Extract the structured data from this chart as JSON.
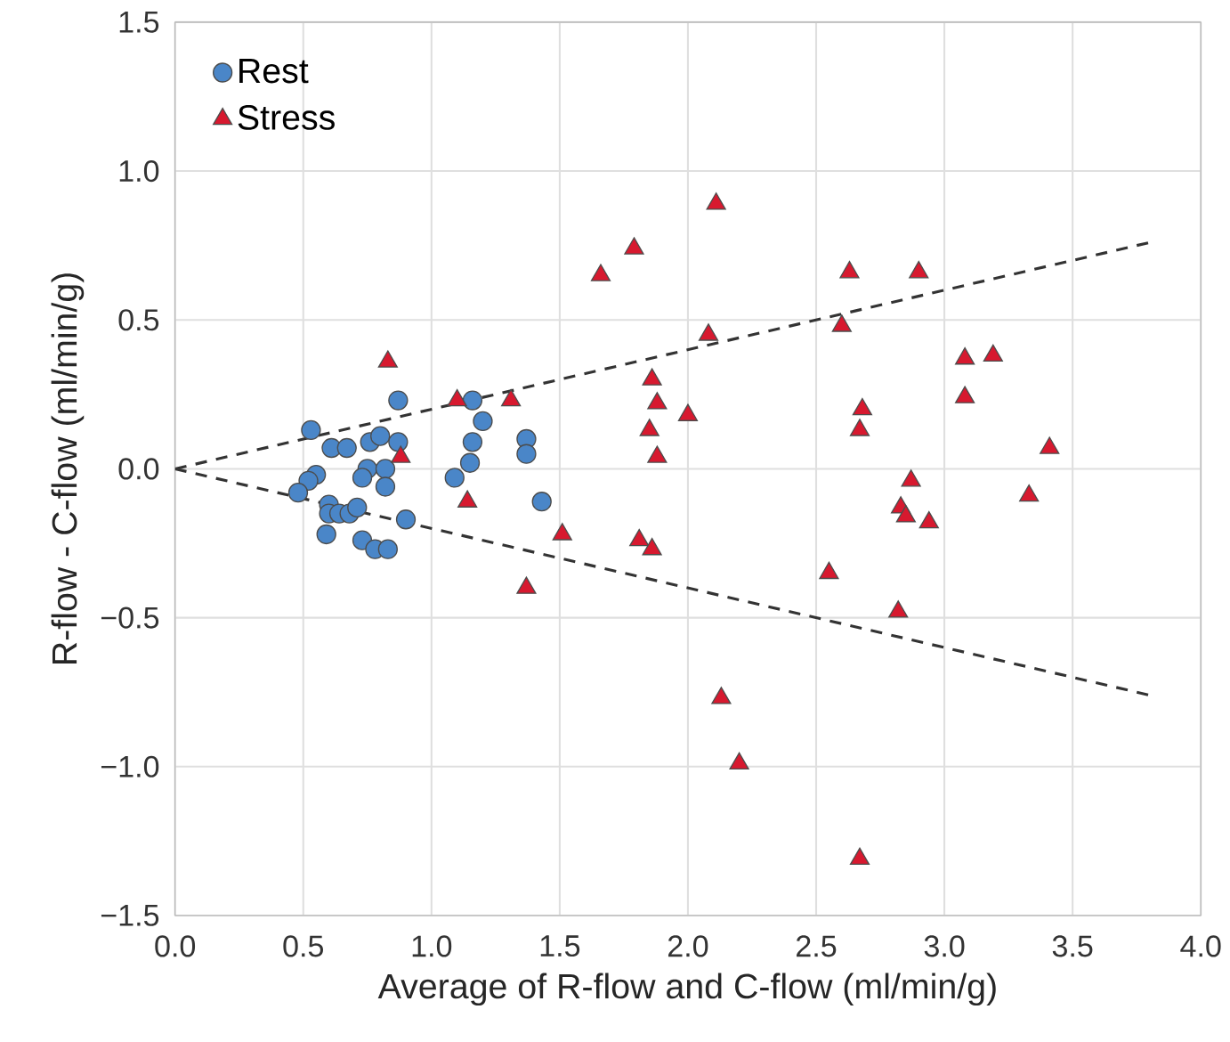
{
  "chart_data": {
    "type": "scatter",
    "xlabel": "Average of R-flow and C-flow (ml/min/g)",
    "ylabel": "R-flow - C-flow (ml/min/g)",
    "xlim": [
      0,
      4
    ],
    "ylim": [
      -1.5,
      1.5
    ],
    "xticks": [
      {
        "value": 0,
        "label": "0.0"
      },
      {
        "value": 0.5,
        "label": "0.5"
      },
      {
        "value": 1,
        "label": "1.0"
      },
      {
        "value": 1.5,
        "label": "1.5"
      },
      {
        "value": 2,
        "label": "2.0"
      },
      {
        "value": 2.5,
        "label": "2.5"
      },
      {
        "value": 3,
        "label": "3.0"
      },
      {
        "value": 3.5,
        "label": "3.5"
      },
      {
        "value": 4,
        "label": "4.0"
      }
    ],
    "yticks": [
      {
        "value": -1.5,
        "label": "−1.5"
      },
      {
        "value": -1,
        "label": "−1.0"
      },
      {
        "value": -0.5,
        "label": "−0.5"
      },
      {
        "value": 0,
        "label": "0.0"
      },
      {
        "value": 0.5,
        "label": "0.5"
      },
      {
        "value": 1,
        "label": "1.0"
      },
      {
        "value": 1.5,
        "label": "1.5"
      }
    ],
    "grid": true,
    "legend": "top left",
    "series": [
      {
        "name": "Rest",
        "color": "#4a86c8",
        "marker": "circle",
        "x": [
          0.53,
          0.61,
          0.67,
          0.76,
          0.8,
          0.87,
          0.87,
          0.75,
          0.82,
          0.73,
          0.82,
          0.55,
          0.52,
          0.48,
          0.6,
          0.6,
          0.64,
          0.68,
          0.71,
          0.9,
          0.59,
          0.73,
          0.78,
          0.83,
          1.16,
          1.2,
          1.16,
          1.15,
          1.09,
          1.37,
          1.37,
          1.43
        ],
        "values": [
          0.13,
          0.07,
          0.07,
          0.09,
          0.11,
          0.23,
          0.09,
          0.0,
          0.0,
          -0.03,
          -0.06,
          -0.02,
          -0.04,
          -0.08,
          -0.12,
          -0.15,
          -0.15,
          -0.15,
          -0.13,
          -0.17,
          -0.22,
          -0.24,
          -0.27,
          -0.27,
          0.23,
          0.16,
          0.09,
          0.02,
          -0.03,
          0.1,
          0.05,
          -0.11
        ]
      },
      {
        "name": "Stress",
        "color": "#d7192f",
        "marker": "triangle",
        "x": [
          0.83,
          1.1,
          1.31,
          0.88,
          1.14,
          1.51,
          1.37,
          2.11,
          1.79,
          1.66,
          2.63,
          2.08,
          2.6,
          1.86,
          1.88,
          1.85,
          1.88,
          2.0,
          2.68,
          2.67,
          1.81,
          1.86,
          2.55,
          2.13,
          2.2,
          2.67,
          2.9,
          3.08,
          3.19,
          3.08,
          3.41,
          2.87,
          2.83,
          2.85,
          2.94,
          3.33,
          2.82
        ],
        "values": [
          0.36,
          0.23,
          0.23,
          0.04,
          -0.11,
          -0.22,
          -0.4,
          0.89,
          0.74,
          0.65,
          0.66,
          0.45,
          0.48,
          0.3,
          0.22,
          0.13,
          0.04,
          0.18,
          0.2,
          0.13,
          -0.24,
          -0.27,
          -0.35,
          -0.77,
          -0.99,
          -1.31,
          0.66,
          0.37,
          0.38,
          0.24,
          0.07,
          -0.04,
          -0.13,
          -0.16,
          -0.18,
          -0.09,
          -0.48
        ]
      },
      {
        "type": "line",
        "color": "#333333",
        "line_style": "dashed",
        "marker": "none",
        "x": [
          0,
          3.8
        ],
        "values": [
          0,
          0.76
        ]
      },
      {
        "type": "line",
        "color": "#333333",
        "line_style": "dashed",
        "marker": "none",
        "x": [
          0,
          3.8
        ],
        "values": [
          0,
          -0.76
        ]
      }
    ]
  }
}
